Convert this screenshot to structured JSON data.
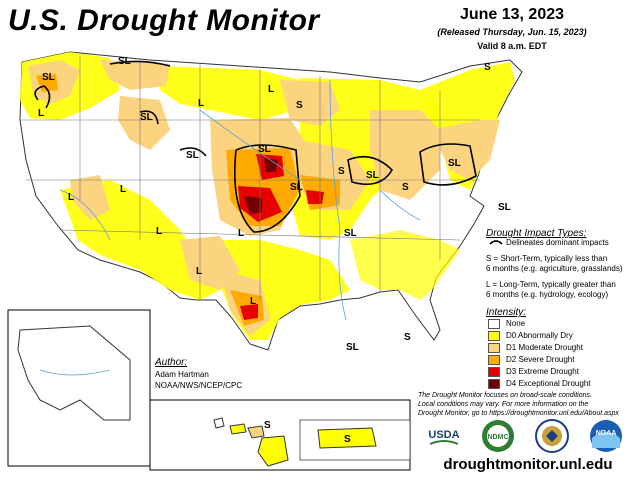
{
  "header": {
    "title": "U.S. Drought Monitor",
    "date": "June 13, 2023",
    "released": "(Released Thursday, Jun. 15, 2023)",
    "valid": "Valid 8 a.m. EDT"
  },
  "impact_legend": {
    "title": "Drought Impact Types:",
    "line_item": "Delineates dominant impacts",
    "s_line1": "S = Short-Term, typically less than",
    "s_line2": "6 months (e.g. agriculture, grasslands)",
    "l_line1": "L = Long-Term, typically greater than",
    "l_line2": "6 months (e.g. hydrology, ecology)"
  },
  "intensity_legend": {
    "title": "Intensity:",
    "items": [
      {
        "label": "None",
        "color": "#ffffff"
      },
      {
        "label": "D0 Abnormally Dry",
        "color": "#ffff00"
      },
      {
        "label": "D1 Moderate Drought",
        "color": "#fcd37f"
      },
      {
        "label": "D2 Severe Drought",
        "color": "#ffaa00"
      },
      {
        "label": "D3 Extreme Drought",
        "color": "#e60000"
      },
      {
        "label": "D4 Exceptional Drought",
        "color": "#730000"
      }
    ]
  },
  "author": {
    "title": "Author:",
    "name": "Adam Hartman",
    "org": "NOAA/NWS/NCEP/CPC"
  },
  "disclaimer": {
    "line1": "The Drought Monitor focuses on broad-scale conditions.",
    "line2": "Local conditions may vary. For more information on the",
    "line3": "Drought Monitor, go to https://droughtmonitor.unl.edu/About.aspx"
  },
  "logos": {
    "usda": "USDA",
    "ndmc": "NDMC",
    "noaa": "NOAA"
  },
  "site": "droughtmonitor.unl.edu",
  "map_labels": {
    "s": "S",
    "l": "L",
    "sl": "SL"
  }
}
